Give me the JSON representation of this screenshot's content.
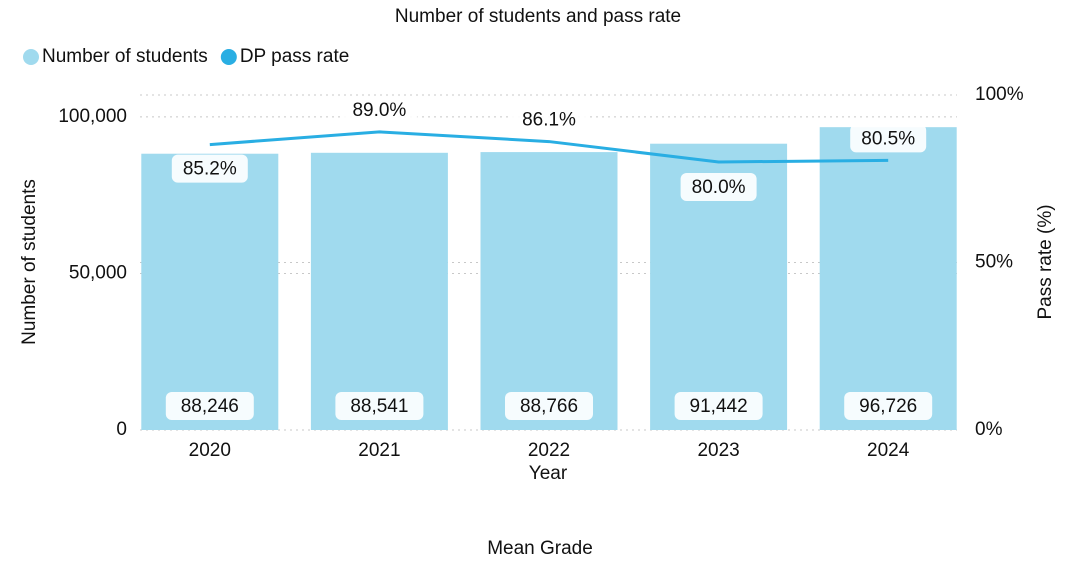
{
  "chart_data": {
    "type": "bar",
    "title": "Number of students and pass rate",
    "categories": [
      "2020",
      "2021",
      "2022",
      "2023",
      "2024"
    ],
    "series": [
      {
        "name": "Number of students",
        "type": "bar",
        "color": "#a0daee",
        "values": [
          88246,
          88541,
          88766,
          91442,
          96726
        ],
        "value_labels": [
          "88,246",
          "88,541",
          "88,766",
          "91,442",
          "96,726"
        ]
      },
      {
        "name": "DP pass rate",
        "type": "line",
        "axis": "y2",
        "color": "#29aee3",
        "values": [
          85.2,
          89.0,
          86.1,
          80.0,
          80.5
        ],
        "value_labels": [
          "85.2%",
          "89.0%",
          "86.1%",
          "80.0%",
          "80.5%"
        ]
      }
    ],
    "x_label": "Year",
    "y_label": "Number of students",
    "y2_label": "Pass rate (%)",
    "ylim": [
      0,
      107000
    ],
    "yticks": [
      0,
      {
        "value": 50000,
        "label": "50,000"
      },
      {
        "value": 100000,
        "label": "100,000"
      }
    ],
    "y2lim": [
      0,
      100
    ],
    "y2ticks": [
      {
        "value": 0,
        "label": "0%"
      },
      {
        "value": 50,
        "label": "50%"
      },
      {
        "value": 100,
        "label": "100%"
      }
    ],
    "grid": true,
    "legend": "top-left",
    "footer": "Mean Grade"
  }
}
